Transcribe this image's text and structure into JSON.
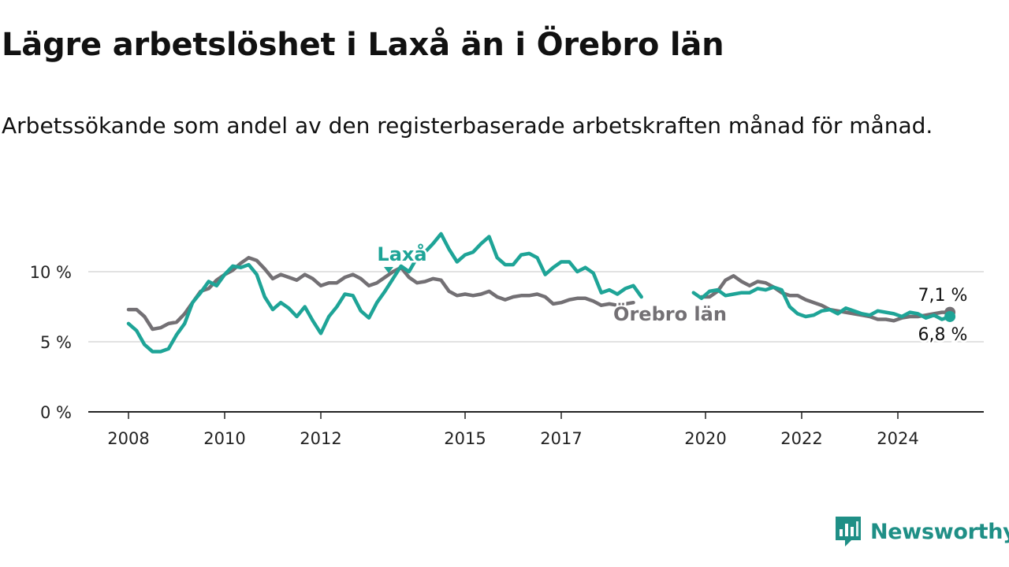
{
  "title": "Lägre arbetslöshet i Laxå än i Örebro län",
  "subtitle": "Arbetssökande som andel av den registerbaserade arbetskraften månad för månad.",
  "brand": {
    "name": "Newsworthy"
  },
  "colors": {
    "laxa": "#1ea497",
    "orebro": "#737074",
    "grid": "#d9d9d9",
    "axis": "#222222",
    "brand": "#1f8f86"
  },
  "chart_data": {
    "type": "line",
    "title": "Lägre arbetslöshet i Laxå än i Örebro län",
    "subtitle": "Arbetssökande som andel av den registerbaserade arbetskraften månad för månad.",
    "xlabel": "",
    "ylabel": "",
    "x_ticks": [
      "2008",
      "2010",
      "2012",
      "2015",
      "2017",
      "2020",
      "2022",
      "2024"
    ],
    "y_ticks": [
      "0 %",
      "5 %",
      "10 %"
    ],
    "ylim": [
      0,
      13
    ],
    "grid": "horizontal",
    "legend": "inline labels",
    "series": [
      {
        "name": "Laxå",
        "last_value_label": "6,8 %",
        "points": [
          [
            "2008-01",
            6.3
          ],
          [
            "2008-03",
            5.8
          ],
          [
            "2008-05",
            4.8
          ],
          [
            "2008-07",
            4.3
          ],
          [
            "2008-09",
            4.3
          ],
          [
            "2008-11",
            4.5
          ],
          [
            "2009-01",
            5.5
          ],
          [
            "2009-03",
            6.3
          ],
          [
            "2009-05",
            7.8
          ],
          [
            "2009-07",
            8.5
          ],
          [
            "2009-09",
            9.3
          ],
          [
            "2009-11",
            9.0
          ],
          [
            "2010-01",
            9.8
          ],
          [
            "2010-03",
            10.4
          ],
          [
            "2010-05",
            10.3
          ],
          [
            "2010-07",
            10.5
          ],
          [
            "2010-09",
            9.8
          ],
          [
            "2010-11",
            8.2
          ],
          [
            "2011-01",
            7.3
          ],
          [
            "2011-03",
            7.8
          ],
          [
            "2011-05",
            7.4
          ],
          [
            "2011-07",
            6.8
          ],
          [
            "2011-09",
            7.5
          ],
          [
            "2011-11",
            6.5
          ],
          [
            "2012-01",
            5.6
          ],
          [
            "2012-03",
            6.8
          ],
          [
            "2012-05",
            7.5
          ],
          [
            "2012-07",
            8.4
          ],
          [
            "2012-09",
            8.3
          ],
          [
            "2012-11",
            7.2
          ],
          [
            "2013-01",
            6.7
          ],
          [
            "2013-03",
            7.8
          ],
          [
            "2013-05",
            8.6
          ],
          [
            "2013-07",
            9.5
          ],
          [
            "2013-09",
            10.4
          ],
          [
            "2013-11",
            10.0
          ],
          [
            "2014-01",
            11.0
          ],
          [
            "2014-03",
            11.4
          ],
          [
            "2014-05",
            12.0
          ],
          [
            "2014-07",
            12.7
          ],
          [
            "2014-09",
            11.6
          ],
          [
            "2014-11",
            10.7
          ],
          [
            "2015-01",
            11.2
          ],
          [
            "2015-03",
            11.4
          ],
          [
            "2015-05",
            12.0
          ],
          [
            "2015-07",
            12.5
          ],
          [
            "2015-09",
            11.0
          ],
          [
            "2015-11",
            10.5
          ],
          [
            "2016-01",
            10.5
          ],
          [
            "2016-03",
            11.2
          ],
          [
            "2016-05",
            11.3
          ],
          [
            "2016-07",
            11.0
          ],
          [
            "2016-09",
            9.8
          ],
          [
            "2016-11",
            10.3
          ],
          [
            "2017-01",
            10.7
          ],
          [
            "2017-03",
            10.7
          ],
          [
            "2017-05",
            10.0
          ],
          [
            "2017-07",
            10.3
          ],
          [
            "2017-09",
            9.9
          ],
          [
            "2017-11",
            8.5
          ],
          [
            "2018-01",
            8.7
          ],
          [
            "2018-03",
            8.4
          ],
          [
            "2018-05",
            8.8
          ],
          [
            "2018-07",
            9.0
          ],
          [
            "2018-09",
            8.2
          ],
          null,
          [
            "2019-10",
            8.5
          ],
          [
            "2019-12",
            8.1
          ],
          [
            "2020-02",
            8.6
          ],
          [
            "2020-04",
            8.7
          ],
          [
            "2020-06",
            8.3
          ],
          [
            "2020-08",
            8.4
          ],
          [
            "2020-10",
            8.5
          ],
          [
            "2020-12",
            8.5
          ],
          [
            "2021-02",
            8.8
          ],
          [
            "2021-04",
            8.7
          ],
          [
            "2021-06",
            8.9
          ],
          [
            "2021-08",
            8.7
          ],
          [
            "2021-10",
            7.5
          ],
          [
            "2021-12",
            7.0
          ],
          [
            "2022-02",
            6.8
          ],
          [
            "2022-04",
            6.9
          ],
          [
            "2022-06",
            7.2
          ],
          [
            "2022-08",
            7.3
          ],
          [
            "2022-10",
            7.0
          ],
          [
            "2022-12",
            7.4
          ],
          [
            "2023-02",
            7.2
          ],
          [
            "2023-04",
            7.0
          ],
          [
            "2023-06",
            6.9
          ],
          [
            "2023-08",
            7.2
          ],
          [
            "2023-10",
            7.1
          ],
          [
            "2023-12",
            7.0
          ],
          [
            "2024-02",
            6.8
          ],
          [
            "2024-04",
            7.1
          ],
          [
            "2024-06",
            7.0
          ],
          [
            "2024-08",
            6.7
          ],
          [
            "2024-10",
            6.9
          ],
          [
            "2024-12",
            6.6
          ],
          [
            "2025-02",
            6.8
          ]
        ]
      },
      {
        "name": "Örebro län",
        "last_value_label": "7,1 %",
        "points": [
          [
            "2008-01",
            7.3
          ],
          [
            "2008-03",
            7.3
          ],
          [
            "2008-05",
            6.8
          ],
          [
            "2008-07",
            5.9
          ],
          [
            "2008-09",
            6.0
          ],
          [
            "2008-11",
            6.3
          ],
          [
            "2009-01",
            6.4
          ],
          [
            "2009-03",
            7.0
          ],
          [
            "2009-05",
            7.8
          ],
          [
            "2009-07",
            8.6
          ],
          [
            "2009-09",
            8.8
          ],
          [
            "2009-11",
            9.4
          ],
          [
            "2010-01",
            9.8
          ],
          [
            "2010-03",
            10.1
          ],
          [
            "2010-05",
            10.6
          ],
          [
            "2010-07",
            11.0
          ],
          [
            "2010-09",
            10.8
          ],
          [
            "2010-11",
            10.2
          ],
          [
            "2011-01",
            9.5
          ],
          [
            "2011-03",
            9.8
          ],
          [
            "2011-05",
            9.6
          ],
          [
            "2011-07",
            9.4
          ],
          [
            "2011-09",
            9.8
          ],
          [
            "2011-11",
            9.5
          ],
          [
            "2012-01",
            9.0
          ],
          [
            "2012-03",
            9.2
          ],
          [
            "2012-05",
            9.2
          ],
          [
            "2012-07",
            9.6
          ],
          [
            "2012-09",
            9.8
          ],
          [
            "2012-11",
            9.5
          ],
          [
            "2013-01",
            9.0
          ],
          [
            "2013-03",
            9.2
          ],
          [
            "2013-05",
            9.6
          ],
          [
            "2013-07",
            10.0
          ],
          [
            "2013-09",
            10.3
          ],
          [
            "2013-11",
            9.6
          ],
          [
            "2014-01",
            9.2
          ],
          [
            "2014-03",
            9.3
          ],
          [
            "2014-05",
            9.5
          ],
          [
            "2014-07",
            9.4
          ],
          [
            "2014-09",
            8.6
          ],
          [
            "2014-11",
            8.3
          ],
          [
            "2015-01",
            8.4
          ],
          [
            "2015-03",
            8.3
          ],
          [
            "2015-05",
            8.4
          ],
          [
            "2015-07",
            8.6
          ],
          [
            "2015-09",
            8.2
          ],
          [
            "2015-11",
            8.0
          ],
          [
            "2016-01",
            8.2
          ],
          [
            "2016-03",
            8.3
          ],
          [
            "2016-05",
            8.3
          ],
          [
            "2016-07",
            8.4
          ],
          [
            "2016-09",
            8.2
          ],
          [
            "2016-11",
            7.7
          ],
          [
            "2017-01",
            7.8
          ],
          [
            "2017-03",
            8.0
          ],
          [
            "2017-05",
            8.1
          ],
          [
            "2017-07",
            8.1
          ],
          [
            "2017-09",
            7.9
          ],
          [
            "2017-11",
            7.6
          ],
          [
            "2018-01",
            7.7
          ],
          [
            "2018-03",
            7.6
          ],
          [
            "2018-05",
            7.7
          ],
          [
            "2018-07",
            7.8
          ],
          null,
          [
            "2019-12",
            8.2
          ],
          [
            "2020-02",
            8.2
          ],
          [
            "2020-04",
            8.6
          ],
          [
            "2020-06",
            9.4
          ],
          [
            "2020-08",
            9.7
          ],
          [
            "2020-10",
            9.3
          ],
          [
            "2020-12",
            9.0
          ],
          [
            "2021-02",
            9.3
          ],
          [
            "2021-04",
            9.2
          ],
          [
            "2021-06",
            8.9
          ],
          [
            "2021-08",
            8.5
          ],
          [
            "2021-10",
            8.3
          ],
          [
            "2021-12",
            8.3
          ],
          [
            "2022-02",
            8.0
          ],
          [
            "2022-04",
            7.8
          ],
          [
            "2022-06",
            7.6
          ],
          [
            "2022-08",
            7.3
          ],
          [
            "2022-10",
            7.2
          ],
          [
            "2022-12",
            7.1
          ],
          [
            "2023-02",
            7.0
          ],
          [
            "2023-04",
            6.9
          ],
          [
            "2023-06",
            6.8
          ],
          [
            "2023-08",
            6.6
          ],
          [
            "2023-10",
            6.6
          ],
          [
            "2023-12",
            6.5
          ],
          [
            "2024-02",
            6.7
          ],
          [
            "2024-04",
            6.8
          ],
          [
            "2024-06",
            6.8
          ],
          [
            "2024-08",
            6.9
          ],
          [
            "2024-10",
            7.0
          ],
          [
            "2024-12",
            7.1
          ],
          [
            "2025-02",
            7.1
          ]
        ]
      }
    ]
  }
}
